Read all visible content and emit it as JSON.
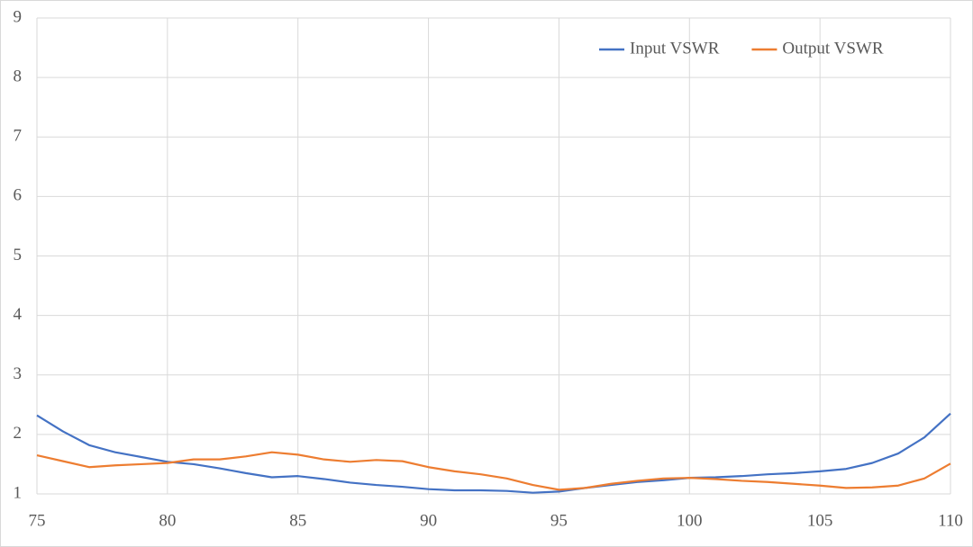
{
  "chart_data": {
    "type": "line",
    "x": [
      75,
      76,
      77,
      78,
      79,
      80,
      81,
      82,
      83,
      84,
      85,
      86,
      87,
      88,
      89,
      90,
      91,
      92,
      93,
      94,
      95,
      96,
      97,
      98,
      99,
      100,
      101,
      102,
      103,
      104,
      105,
      106,
      107,
      108,
      109,
      110
    ],
    "series": [
      {
        "name": "Input VSWR",
        "color": "#4472c4",
        "values": [
          2.32,
          2.05,
          1.82,
          1.7,
          1.62,
          1.54,
          1.5,
          1.43,
          1.35,
          1.28,
          1.3,
          1.25,
          1.19,
          1.15,
          1.12,
          1.08,
          1.06,
          1.06,
          1.05,
          1.02,
          1.04,
          1.1,
          1.15,
          1.2,
          1.23,
          1.27,
          1.28,
          1.3,
          1.33,
          1.35,
          1.38,
          1.42,
          1.52,
          1.68,
          1.95,
          2.35
        ]
      },
      {
        "name": "Output VSWR",
        "color": "#ed7d31",
        "values": [
          1.65,
          1.55,
          1.45,
          1.48,
          1.5,
          1.52,
          1.58,
          1.58,
          1.63,
          1.7,
          1.66,
          1.58,
          1.54,
          1.57,
          1.55,
          1.45,
          1.38,
          1.33,
          1.26,
          1.15,
          1.07,
          1.1,
          1.17,
          1.22,
          1.26,
          1.27,
          1.25,
          1.22,
          1.2,
          1.17,
          1.14,
          1.1,
          1.11,
          1.14,
          1.26,
          1.51
        ]
      }
    ],
    "xlim": [
      75,
      110
    ],
    "xticks": [
      75,
      80,
      85,
      90,
      95,
      100,
      105,
      110
    ],
    "ylim": [
      1,
      9
    ],
    "yticks": [
      1,
      2,
      3,
      4,
      5,
      6,
      7,
      8,
      9
    ],
    "grid": true,
    "legend": "top-right"
  }
}
